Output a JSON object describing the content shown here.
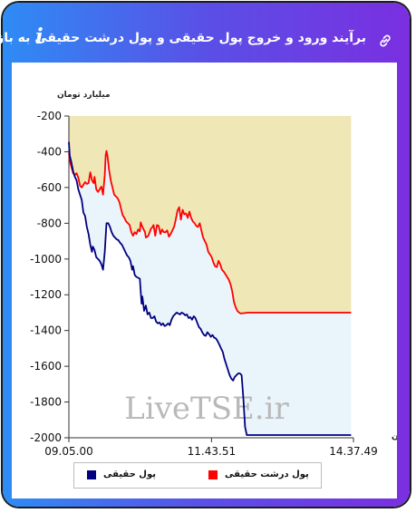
{
  "header": {
    "title": "برآیند ورود و خروج پول حقیقی و پول درشت حقیقی به بازار",
    "info_icon": "i",
    "link_icon": "link-icon",
    "info_icon_name": "info-icon"
  },
  "colors": {
    "series_real": "#000080",
    "series_large_real": "#ff0000",
    "upper_fill": "#efe7b5",
    "between_fill": "#eaf4fb",
    "background": "#ffffff"
  },
  "watermark": "LiveTSE.ir",
  "chart_data": {
    "type": "line",
    "ylabel": "میلیارد تومان",
    "xlabel": "زمان",
    "ylim": [
      -2000,
      -200
    ],
    "yticks": [
      -200,
      -400,
      -600,
      -800,
      -1000,
      -1200,
      -1400,
      -1600,
      -1800,
      -2000
    ],
    "xticks": [
      "09.05.00",
      "11.43.51",
      "14.37.49"
    ],
    "x_unit": "minutes since 09:05:00",
    "xlim": [
      0,
      332.8
    ],
    "legend": {
      "position": "bottom"
    },
    "series": [
      {
        "name": "پول درشت حقیقی",
        "color": "#ff0000",
        "points": [
          [
            0,
            -410
          ],
          [
            2,
            -470
          ],
          [
            5,
            -520
          ],
          [
            7,
            -530
          ],
          [
            9,
            -520
          ],
          [
            11,
            -545
          ],
          [
            13,
            -590
          ],
          [
            15,
            -600
          ],
          [
            17,
            -585
          ],
          [
            19,
            -570
          ],
          [
            21,
            -580
          ],
          [
            23,
            -575
          ],
          [
            25,
            -515
          ],
          [
            27,
            -560
          ],
          [
            29,
            -575
          ],
          [
            30,
            -540
          ],
          [
            32,
            -610
          ],
          [
            34,
            -625
          ],
          [
            36,
            -610
          ],
          [
            38,
            -595
          ],
          [
            40,
            -640
          ],
          [
            42,
            -530
          ],
          [
            43,
            -420
          ],
          [
            44,
            -395
          ],
          [
            45,
            -420
          ],
          [
            47,
            -500
          ],
          [
            49,
            -560
          ],
          [
            51,
            -600
          ],
          [
            53,
            -640
          ],
          [
            55,
            -650
          ],
          [
            57,
            -660
          ],
          [
            59,
            -680
          ],
          [
            61,
            -720
          ],
          [
            63,
            -755
          ],
          [
            65,
            -770
          ],
          [
            67,
            -790
          ],
          [
            69,
            -800
          ],
          [
            71,
            -810
          ],
          [
            73,
            -850
          ],
          [
            75,
            -870
          ],
          [
            77,
            -850
          ],
          [
            79,
            -860
          ],
          [
            81,
            -835
          ],
          [
            83,
            -845
          ],
          [
            84,
            -795
          ],
          [
            85,
            -810
          ],
          [
            87,
            -830
          ],
          [
            89,
            -850
          ],
          [
            90,
            -880
          ],
          [
            93,
            -870
          ],
          [
            96,
            -830
          ],
          [
            98,
            -820
          ],
          [
            99,
            -810
          ],
          [
            101,
            -870
          ],
          [
            103,
            -810
          ],
          [
            105,
            -815
          ],
          [
            107,
            -860
          ],
          [
            109,
            -835
          ],
          [
            111,
            -850
          ],
          [
            113,
            -850
          ],
          [
            115,
            -840
          ],
          [
            117,
            -875
          ],
          [
            119,
            -860
          ],
          [
            121,
            -840
          ],
          [
            123,
            -820
          ],
          [
            125,
            -780
          ],
          [
            127,
            -730
          ],
          [
            129,
            -710
          ],
          [
            131,
            -780
          ],
          [
            133,
            -725
          ],
          [
            135,
            -750
          ],
          [
            137,
            -745
          ],
          [
            139,
            -770
          ],
          [
            141,
            -735
          ],
          [
            143,
            -770
          ],
          [
            145,
            -790
          ],
          [
            147,
            -800
          ],
          [
            149,
            -815
          ],
          [
            151,
            -820
          ],
          [
            153,
            -800
          ],
          [
            155,
            -840
          ],
          [
            157,
            -880
          ],
          [
            159,
            -900
          ],
          [
            161,
            -920
          ],
          [
            163,
            -960
          ],
          [
            165,
            -975
          ],
          [
            167,
            -990
          ],
          [
            169,
            -1020
          ],
          [
            171,
            -1040
          ],
          [
            173,
            -1045
          ],
          [
            175,
            -1010
          ],
          [
            177,
            -1030
          ],
          [
            179,
            -1060
          ],
          [
            181,
            -1070
          ],
          [
            183,
            -1085
          ],
          [
            185,
            -1100
          ],
          [
            187,
            -1115
          ],
          [
            189,
            -1140
          ],
          [
            191,
            -1180
          ],
          [
            193,
            -1240
          ],
          [
            195,
            -1270
          ],
          [
            197,
            -1290
          ],
          [
            199,
            -1300
          ],
          [
            201,
            -1305
          ],
          [
            210,
            -1300
          ],
          [
            220,
            -1300
          ],
          [
            250,
            -1300
          ],
          [
            280,
            -1300
          ],
          [
            310,
            -1300
          ],
          [
            330,
            -1300
          ]
        ]
      },
      {
        "name": "پول حقیقی",
        "color": "#000080",
        "points": [
          [
            0,
            -345
          ],
          [
            1,
            -420
          ],
          [
            3,
            -460
          ],
          [
            5,
            -510
          ],
          [
            7,
            -540
          ],
          [
            9,
            -560
          ],
          [
            11,
            -610
          ],
          [
            13,
            -640
          ],
          [
            15,
            -670
          ],
          [
            17,
            -740
          ],
          [
            19,
            -760
          ],
          [
            21,
            -820
          ],
          [
            23,
            -860
          ],
          [
            25,
            -920
          ],
          [
            27,
            -960
          ],
          [
            28,
            -930
          ],
          [
            30,
            -950
          ],
          [
            32,
            -990
          ],
          [
            34,
            -1000
          ],
          [
            36,
            -1010
          ],
          [
            38,
            -1030
          ],
          [
            40,
            -1060
          ],
          [
            42,
            -960
          ],
          [
            44,
            -800
          ],
          [
            46,
            -800
          ],
          [
            48,
            -820
          ],
          [
            50,
            -850
          ],
          [
            52,
            -870
          ],
          [
            54,
            -880
          ],
          [
            56,
            -890
          ],
          [
            58,
            -895
          ],
          [
            60,
            -910
          ],
          [
            62,
            -920
          ],
          [
            64,
            -940
          ],
          [
            66,
            -960
          ],
          [
            68,
            -980
          ],
          [
            70,
            -990
          ],
          [
            72,
            -1010
          ],
          [
            74,
            -1060
          ],
          [
            75,
            -1040
          ],
          [
            77,
            -1090
          ],
          [
            79,
            -1100
          ],
          [
            81,
            -1105
          ],
          [
            83,
            -1110
          ],
          [
            85,
            -1250
          ],
          [
            86,
            -1210
          ],
          [
            88,
            -1290
          ],
          [
            90,
            -1260
          ],
          [
            92,
            -1310
          ],
          [
            94,
            -1300
          ],
          [
            96,
            -1330
          ],
          [
            98,
            -1330
          ],
          [
            100,
            -1320
          ],
          [
            102,
            -1350
          ],
          [
            104,
            -1360
          ],
          [
            106,
            -1355
          ],
          [
            108,
            -1370
          ],
          [
            110,
            -1360
          ],
          [
            112,
            -1375
          ],
          [
            114,
            -1370
          ],
          [
            116,
            -1360
          ],
          [
            118,
            -1370
          ],
          [
            120,
            -1340
          ],
          [
            122,
            -1320
          ],
          [
            124,
            -1310
          ],
          [
            126,
            -1300
          ],
          [
            128,
            -1305
          ],
          [
            130,
            -1310
          ],
          [
            132,
            -1300
          ],
          [
            134,
            -1305
          ],
          [
            136,
            -1315
          ],
          [
            138,
            -1310
          ],
          [
            140,
            -1330
          ],
          [
            142,
            -1325
          ],
          [
            144,
            -1340
          ],
          [
            146,
            -1320
          ],
          [
            148,
            -1330
          ],
          [
            150,
            -1355
          ],
          [
            152,
            -1380
          ],
          [
            154,
            -1390
          ],
          [
            156,
            -1410
          ],
          [
            158,
            -1425
          ],
          [
            160,
            -1430
          ],
          [
            162,
            -1410
          ],
          [
            164,
            -1420
          ],
          [
            166,
            -1435
          ],
          [
            168,
            -1425
          ],
          [
            170,
            -1440
          ],
          [
            172,
            -1445
          ],
          [
            174,
            -1460
          ],
          [
            176,
            -1480
          ],
          [
            178,
            -1500
          ],
          [
            180,
            -1520
          ],
          [
            182,
            -1560
          ],
          [
            184,
            -1590
          ],
          [
            186,
            -1620
          ],
          [
            188,
            -1650
          ],
          [
            190,
            -1670
          ],
          [
            192,
            -1680
          ],
          [
            194,
            -1660
          ],
          [
            196,
            -1650
          ],
          [
            198,
            -1640
          ],
          [
            200,
            -1640
          ],
          [
            202,
            -1650
          ],
          [
            204,
            -1780
          ],
          [
            206,
            -1940
          ],
          [
            208,
            -1985
          ],
          [
            210,
            -1985
          ],
          [
            230,
            -1985
          ],
          [
            260,
            -1985
          ],
          [
            290,
            -1985
          ],
          [
            320,
            -1985
          ],
          [
            330,
            -1985
          ]
        ]
      }
    ]
  },
  "legend": {
    "real_label": "پول حقیقی",
    "large_real_label": "پول درشت حقیقی"
  }
}
